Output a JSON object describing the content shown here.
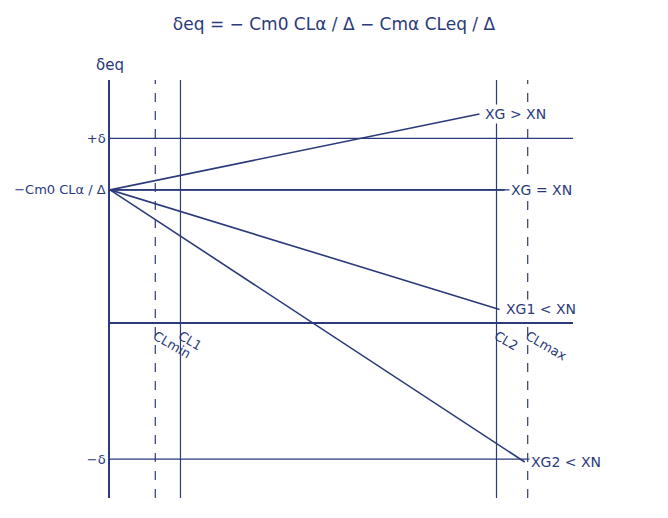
{
  "chart_data": {
    "type": "line",
    "title": "δeq = − Cm0 CLα / Δ − Cmα CLeq / Δ",
    "ylabel": "δeq",
    "xlim": [
      0,
      4.6
    ],
    "ylim": [
      -1.8,
      2.5
    ],
    "xticks": [
      {
        "value": 0.45,
        "label": "CLmin"
      },
      {
        "value": 0.7,
        "label": "CL1"
      },
      {
        "value": 3.84,
        "label": "CL2"
      },
      {
        "value": 4.15,
        "label": "CLmax"
      }
    ],
    "yticks": [
      {
        "value": 1.9,
        "label": "+δ"
      },
      {
        "value": 1.37,
        "label": "−Cm0 CLα / Δ"
      },
      {
        "value": -1.4,
        "label": "−δ"
      }
    ],
    "grid": true,
    "color": "#2b3a7a",
    "series": [
      {
        "name": "XG > XN",
        "x": [
          0,
          3.67
        ],
        "values": [
          1.37,
          2.15
        ]
      },
      {
        "name": "XG = XN",
        "x": [
          0,
          3.92
        ],
        "values": [
          1.37,
          1.37
        ]
      },
      {
        "name": "XG1 < XN",
        "x": [
          0,
          3.87
        ],
        "values": [
          1.37,
          0.14
        ]
      },
      {
        "name": "XG2 < XN",
        "x": [
          0,
          4.12
        ],
        "values": [
          1.37,
          -1.43
        ]
      }
    ]
  }
}
